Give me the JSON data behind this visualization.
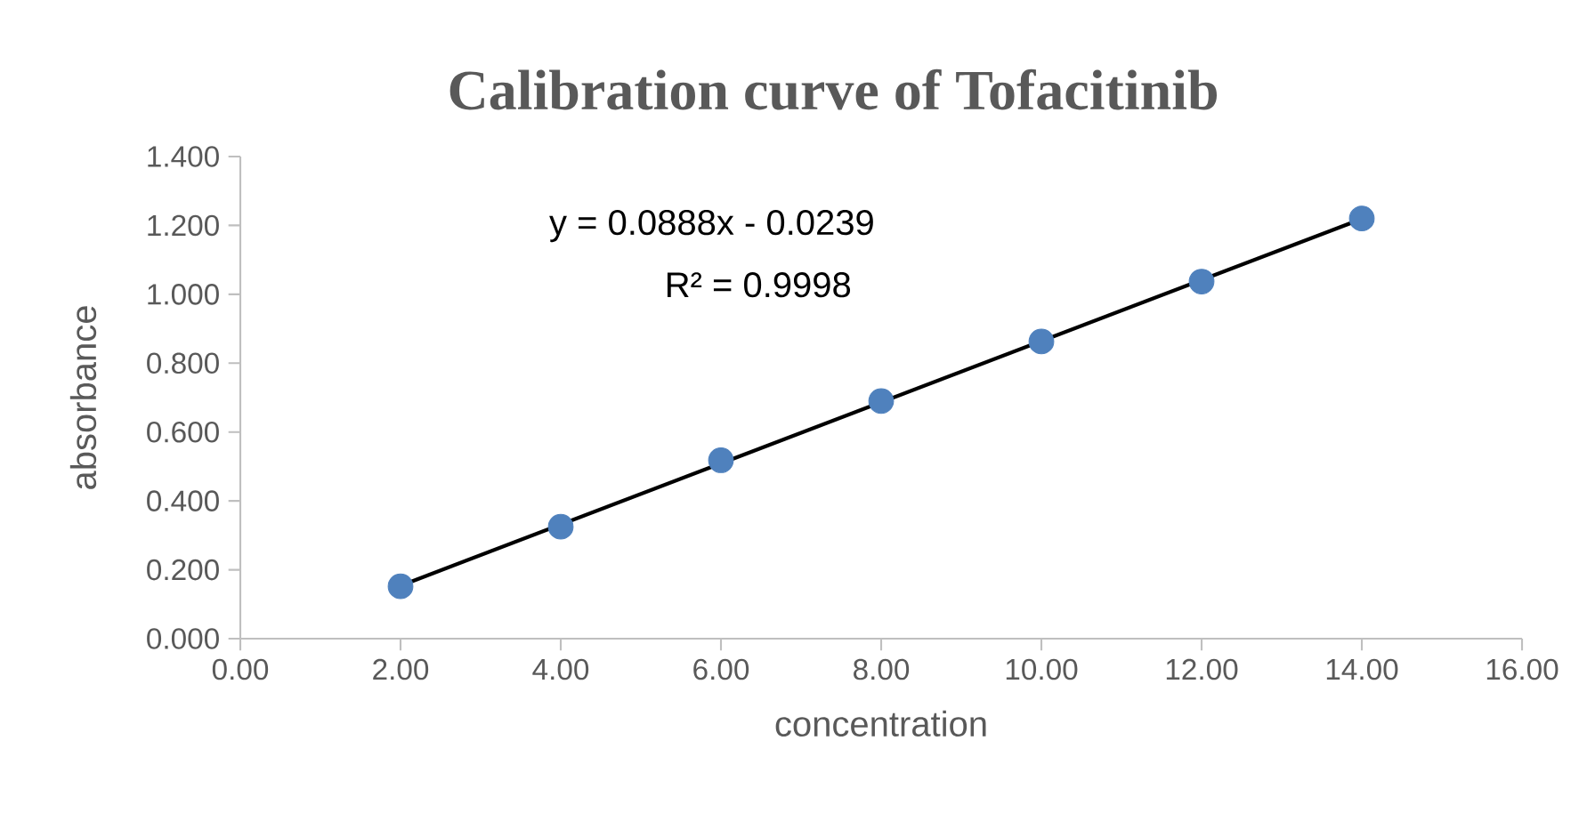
{
  "chart_data": {
    "type": "scatter",
    "title": "Calibration curve of   Tofacitinib",
    "xlabel": "concentration",
    "ylabel": "absorbance",
    "x": [
      2,
      4,
      6,
      8,
      10,
      12,
      14
    ],
    "series": [
      {
        "color": "#4f81bd",
        "marker": "circle",
        "values": [
          0.152,
          0.325,
          0.518,
          0.69,
          0.863,
          1.037,
          1.22
        ]
      },
      {
        "type": "line",
        "color": "#000000",
        "marker": "none",
        "x": [
          2,
          14
        ],
        "values": [
          0.154,
          1.219
        ]
      }
    ],
    "xlim": [
      0,
      16
    ],
    "ylim": [
      0,
      1.4
    ],
    "xticks": [
      {
        "value": 0,
        "label": "0.00"
      },
      {
        "value": 2,
        "label": "2.00"
      },
      {
        "value": 4,
        "label": "4.00"
      },
      {
        "value": 6,
        "label": "6.00"
      },
      {
        "value": 8,
        "label": "8.00"
      },
      {
        "value": 10,
        "label": "10.00"
      },
      {
        "value": 12,
        "label": "12.00"
      },
      {
        "value": 14,
        "label": "14.00"
      },
      {
        "value": 16,
        "label": "16.00"
      }
    ],
    "yticks": [
      {
        "value": 0,
        "label": "0.000"
      },
      {
        "value": 0.2,
        "label": "0.200"
      },
      {
        "value": 0.4,
        "label": "0.400"
      },
      {
        "value": 0.6,
        "label": "0.600"
      },
      {
        "value": 0.8,
        "label": "0.800"
      },
      {
        "value": 1.0,
        "label": "1.000"
      },
      {
        "value": 1.2,
        "label": "1.200"
      },
      {
        "value": 1.4,
        "label": "1.400"
      }
    ],
    "annotations": [
      "y = 0.0888x - 0.0239",
      "R² = 0.9998"
    ]
  }
}
